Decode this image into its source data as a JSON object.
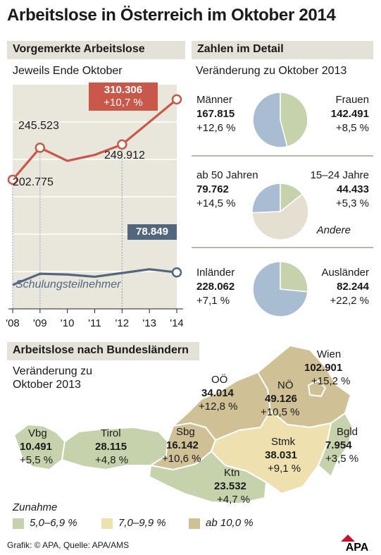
{
  "title": "Arbeitslose in Österreich im Oktober 2014",
  "line_panel": {
    "header": "Vorgemerkte Arbeitslose",
    "subtitle": "Jeweils Ende Oktober",
    "highlight_value": "310.306",
    "highlight_change": "+10,7 %",
    "training_value": "78.849",
    "training_label": "Schulungsteilnehmer"
  },
  "detail_panel": {
    "header": "Zahlen im Detail",
    "subtitle": "Veränderung zu Oktober 2013",
    "groups": [
      {
        "left_label": "Männer",
        "left_value": "167.815",
        "left_change": "+12,6 %",
        "right_label": "Frauen",
        "right_value": "142.491",
        "right_change": "+8,5 %"
      },
      {
        "left_label": "ab 50 Jahren",
        "left_value": "79.762",
        "left_change": "+14,5 %",
        "right_label": "15–24 Jahre",
        "right_value": "44.433",
        "right_change": "+5,3 %",
        "other_label": "Andere"
      },
      {
        "left_label": "Inländer",
        "left_value": "228.062",
        "left_change": "+7,1 %",
        "right_label": "Ausländer",
        "right_value": "82.244",
        "right_change": "+22,2 %"
      }
    ]
  },
  "map_panel": {
    "header": "Arbeitslose nach Bundesländern",
    "subtitle_line1": "Veränderung zu",
    "subtitle_line2": "Oktober 2013",
    "states": [
      {
        "name": "Wien",
        "value": "102.901",
        "change": "+15,2 %",
        "class": "high"
      },
      {
        "name": "OÖ",
        "value": "34.014",
        "change": "+12,8 %",
        "class": "high"
      },
      {
        "name": "NÖ",
        "value": "49.126",
        "change": "+10,5 %",
        "class": "high"
      },
      {
        "name": "Sbg",
        "value": "16.142",
        "change": "+10,6 %",
        "class": "high"
      },
      {
        "name": "Stmk",
        "value": "38.031",
        "change": "+9,1 %",
        "class": "mid"
      },
      {
        "name": "Bgld",
        "value": "7.954",
        "change": "+3,5 %",
        "class": "low"
      },
      {
        "name": "Vbg",
        "value": "10.491",
        "change": "+5,5 %",
        "class": "low"
      },
      {
        "name": "Tirol",
        "value": "28.115",
        "change": "+4,8 %",
        "class": "low"
      },
      {
        "name": "Ktn",
        "value": "23.532",
        "change": "+4,7 %",
        "class": "low"
      }
    ],
    "legend_title": "Zunahme",
    "legend": [
      {
        "label": "5,0–6,9 %",
        "color": "#c6d2ac"
      },
      {
        "label": "7,0–9,9 %",
        "color": "#efe0b0"
      },
      {
        "label": "ab 10,0 %",
        "color": "#cfc096"
      }
    ]
  },
  "footer": {
    "source": "Grafik: © APA, Quelle: APA/AMS",
    "logo": "APA"
  },
  "colors": {
    "line": "#c8584a",
    "training": "#52667f",
    "plot_bg": "#e9e6dc",
    "grid": "#ffffff",
    "pie_blue": "#a8bdd2",
    "pie_green": "#c6d2ac",
    "pie_beige": "#e4dfd1"
  },
  "chart_data": [
    {
      "type": "line",
      "title": "Vorgemerkte Arbeitslose",
      "subtitle": "Jeweils Ende Oktober",
      "x": [
        "'08",
        "'09",
        "'10",
        "'11",
        "'12",
        "'13",
        "'14"
      ],
      "series": [
        {
          "name": "",
          "values": [
            202775,
            245523,
            228000,
            236000,
            249912,
            280000,
            310306
          ],
          "labels": [
            "202.775",
            "245.523",
            "",
            "",
            "249.912",
            "",
            "310.306"
          ]
        },
        {
          "name": "Schulungsteilnehmer",
          "values": [
            62000,
            77000,
            76000,
            73000,
            78000,
            83000,
            78849
          ],
          "labels": [
            "",
            "",
            "",
            "",
            "",
            "",
            "78.849"
          ]
        }
      ],
      "ylim": [
        30000,
        330000
      ],
      "grid": true
    },
    {
      "type": "pie",
      "categories": [
        "Männer",
        "Frauen"
      ],
      "values": [
        167815,
        142491
      ]
    },
    {
      "type": "pie",
      "categories": [
        "ab 50 Jahren",
        "15–24 Jahre",
        "Andere"
      ],
      "values": [
        79762,
        44433,
        186111
      ]
    },
    {
      "type": "pie",
      "categories": [
        "Inländer",
        "Ausländer"
      ],
      "values": [
        228062,
        82244
      ]
    }
  ]
}
